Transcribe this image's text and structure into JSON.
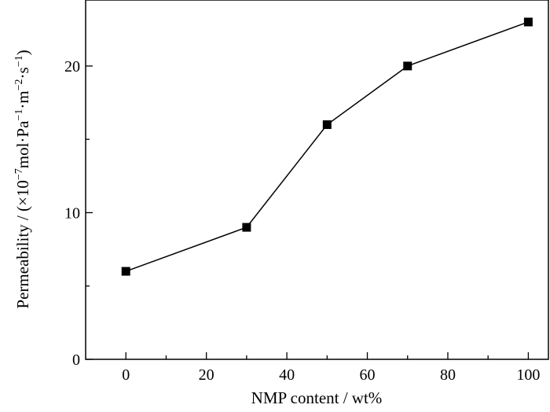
{
  "chart_data": {
    "type": "line",
    "title": "",
    "xlabel": "NMP content / wt%",
    "ylabel": {
      "prefix": "Permeability / (×10",
      "exp1": "−7",
      "mid1": "mol·Pa",
      "exp2": "−1",
      "mid2": "·m",
      "exp3": "−2",
      "mid3": "·s",
      "exp4": "−1",
      "suffix": ")"
    },
    "xlim": [
      -10,
      105
    ],
    "ylim": [
      0,
      24.5
    ],
    "x_ticks": [
      0,
      20,
      40,
      60,
      80,
      100
    ],
    "y_ticks": [
      0,
      10,
      20
    ],
    "x_minor_ticks": [
      10,
      30,
      50,
      70,
      90
    ],
    "y_minor_ticks": [
      5,
      15
    ],
    "grid": false,
    "series": [
      {
        "marker": "square",
        "color": "#000000",
        "x": [
          0,
          30,
          50,
          70,
          100
        ],
        "y": [
          6,
          9,
          16,
          20,
          23
        ]
      }
    ]
  }
}
